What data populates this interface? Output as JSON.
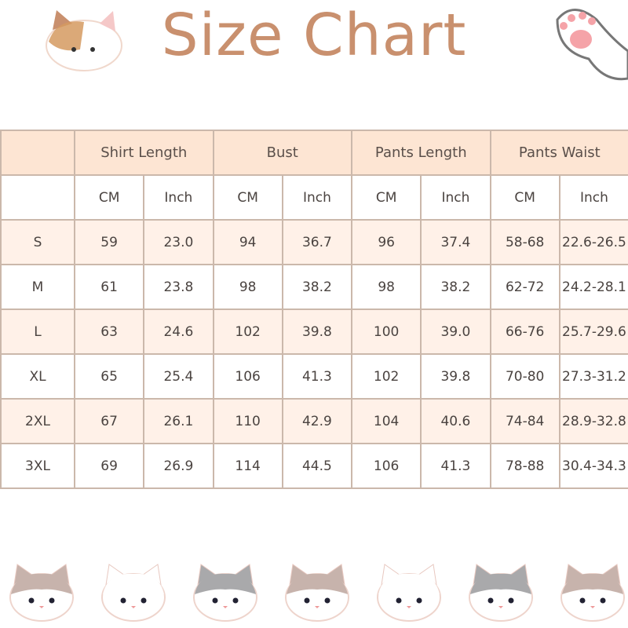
{
  "title": "Size Chart",
  "table": {
    "groups": [
      "Shirt Length",
      "Bust",
      "Pants Length",
      "Pants Waist"
    ],
    "units": [
      "CM",
      "Inch",
      "CM",
      "Inch",
      "CM",
      "Inch",
      "CM",
      "Inch"
    ],
    "rows": [
      [
        "S",
        "59",
        "23.0",
        "94",
        "36.7",
        "96",
        "37.4",
        "58-68",
        "22.6-26.5"
      ],
      [
        "M",
        "61",
        "23.8",
        "98",
        "38.2",
        "98",
        "38.2",
        "62-72",
        "24.2-28.1"
      ],
      [
        "L",
        "63",
        "24.6",
        "102",
        "39.8",
        "100",
        "39.0",
        "66-76",
        "25.7-29.6"
      ],
      [
        "XL",
        "65",
        "25.4",
        "106",
        "41.3",
        "102",
        "39.8",
        "70-80",
        "27.3-31.2"
      ],
      [
        "2XL",
        "67",
        "26.1",
        "110",
        "42.9",
        "104",
        "40.6",
        "74-84",
        "28.9-32.8"
      ],
      [
        "3XL",
        "69",
        "26.9",
        "114",
        "44.5",
        "106",
        "41.3",
        "78-88",
        "30.4-34.3"
      ]
    ]
  },
  "colors": {
    "title": "#c9906e",
    "header_bg": "#fde5d3",
    "row_alt_bg": "#fff1e8",
    "border": "#cbb8ab"
  }
}
